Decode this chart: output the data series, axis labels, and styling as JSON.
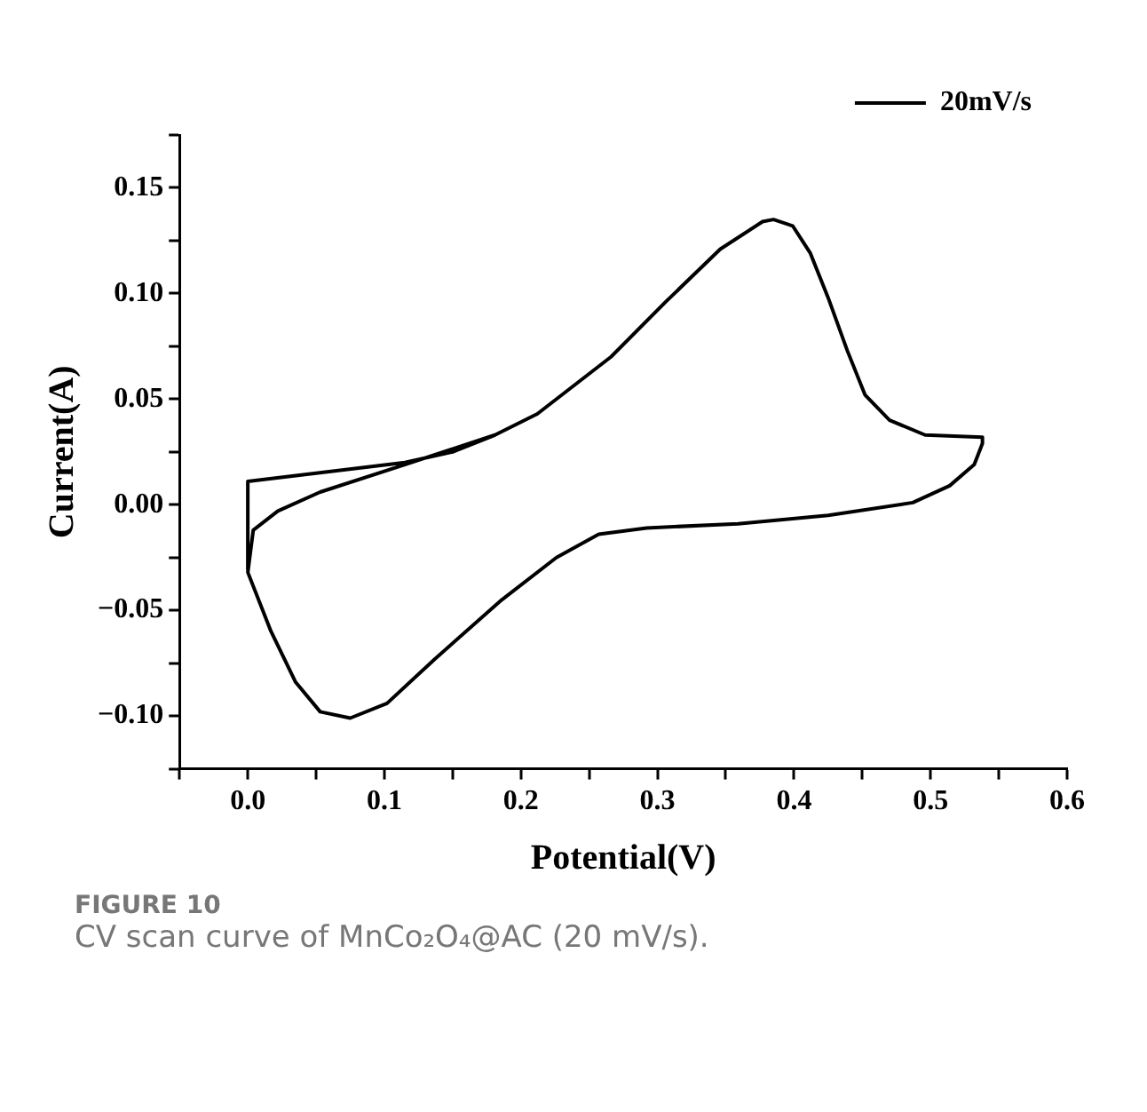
{
  "chart_data": {
    "type": "line",
    "xlabel": "Potential(V)",
    "ylabel": "Current(A)",
    "xlim": [
      -0.05,
      0.6
    ],
    "ylim": [
      -0.125,
      0.175
    ],
    "xticks": [
      {
        "value": -0.05,
        "label": null
      },
      {
        "value": 0,
        "label": "0.0"
      },
      {
        "value": 0.05,
        "label": null
      },
      {
        "value": 0.1,
        "label": "0.1"
      },
      {
        "value": 0.15,
        "label": null
      },
      {
        "value": 0.2,
        "label": "0.2"
      },
      {
        "value": 0.25,
        "label": null
      },
      {
        "value": 0.3,
        "label": "0.3"
      },
      {
        "value": 0.35,
        "label": null
      },
      {
        "value": 0.4,
        "label": "0.4"
      },
      {
        "value": 0.45,
        "label": null
      },
      {
        "value": 0.5,
        "label": "0.5"
      },
      {
        "value": 0.55,
        "label": null
      },
      {
        "value": 0.6,
        "label": "0.6"
      }
    ],
    "yticks": [
      {
        "value": -0.125,
        "label": null
      },
      {
        "value": -0.1,
        "label": "−0.10"
      },
      {
        "value": -0.075,
        "label": null
      },
      {
        "value": -0.05,
        "label": "−0.05"
      },
      {
        "value": -0.025,
        "label": null
      },
      {
        "value": 0,
        "label": "0.00"
      },
      {
        "value": 0.025,
        "label": null
      },
      {
        "value": 0.05,
        "label": "0.05"
      },
      {
        "value": 0.075,
        "label": null
      },
      {
        "value": 0.1,
        "label": "0.10"
      },
      {
        "value": 0.125,
        "label": null
      },
      {
        "value": 0.15,
        "label": "0.15"
      },
      {
        "value": 0.175,
        "label": null
      }
    ],
    "series": [
      {
        "name": "20mV/s",
        "color": "#000000",
        "x": [
          0,
          0,
          0.115,
          0.15,
          0.181,
          0.212,
          0.266,
          0.306,
          0.346,
          0.377,
          0.385,
          0.399,
          0.412,
          0.425,
          0.439,
          0.452,
          0.47,
          0.496,
          0.538,
          0.538,
          0.532,
          0.514,
          0.487,
          0.425,
          0.359,
          0.292,
          0.257,
          0.226,
          0.186,
          0.137,
          0.102,
          0.075,
          0.053,
          0.035,
          0.017,
          0,
          0.004,
          0.022,
          0.053,
          0.115,
          0.181,
          0.212
        ],
        "values": [
          -0.031,
          0.011,
          0.02,
          0.025,
          0.033,
          0.043,
          0.07,
          0.096,
          0.121,
          0.134,
          0.135,
          0.132,
          0.119,
          0.098,
          0.073,
          0.052,
          0.04,
          0.033,
          0.032,
          0.029,
          0.019,
          0.009,
          0.001,
          -0.005,
          -0.009,
          -0.011,
          -0.014,
          -0.025,
          -0.045,
          -0.073,
          -0.094,
          -0.101,
          -0.098,
          -0.084,
          -0.06,
          -0.032,
          -0.012,
          -0.003,
          0.006,
          0.019,
          0.033,
          0.043
        ]
      }
    ],
    "grid": false,
    "legend": "top right",
    "marker": "none",
    "line_style": "solid",
    "annotations": [
      "FIGURE 10",
      "CV scan curve of MnCo₂O₄@AC (20 mV/s)."
    ]
  }
}
